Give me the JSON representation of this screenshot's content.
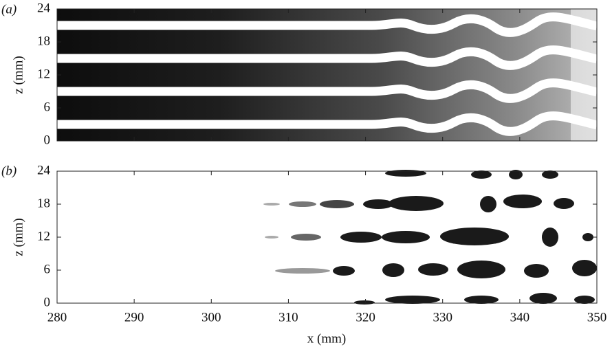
{
  "chart_data": [
    {
      "type": "contour",
      "panel_label": "(a)",
      "ylabel": "z (mm)",
      "xlim": [
        280,
        350
      ],
      "xticks": [
        280,
        290,
        300,
        310,
        320,
        330,
        340,
        350
      ],
      "ylim": [
        0,
        24
      ],
      "yticks": [
        0,
        6,
        12,
        18,
        24
      ]
    },
    {
      "type": "contour",
      "panel_label": "(b)",
      "ylabel": "z (mm)",
      "xlabel": "x (mm)",
      "xlim": [
        280,
        350
      ],
      "xticks": [
        280,
        290,
        300,
        310,
        320,
        330,
        340,
        350
      ],
      "ylim": [
        0,
        24
      ],
      "yticks": [
        0,
        6,
        12,
        18,
        24
      ]
    }
  ]
}
